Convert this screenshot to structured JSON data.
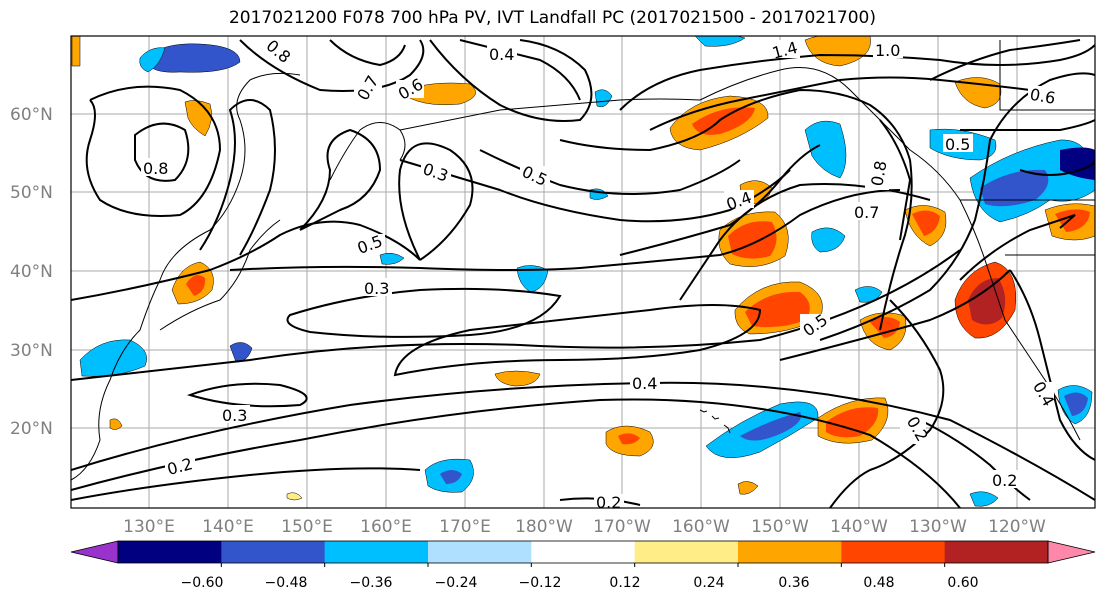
{
  "title": "2017021200 F078 700 hPa PV, IVT Landfall PC (2017021500 - 2017021700)",
  "map": {
    "lat_labels": [
      "60°N",
      "50°N",
      "40°N",
      "30°N",
      "20°N"
    ],
    "lon_labels": [
      "130°E",
      "140°E",
      "150°E",
      "160°E",
      "170°E",
      "180°W",
      "170°W",
      "160°W",
      "150°W",
      "140°W",
      "130°W",
      "120°W"
    ],
    "contour_labels": [
      "0.8",
      "0.4",
      "0.7",
      "0.6",
      "0.3",
      "0.5",
      "0.2",
      "1.4",
      "1.0",
      "0.4",
      "0.3",
      "0.5",
      "0.8",
      "0.7",
      "0.5",
      "0.4",
      "0.3",
      "0.2",
      "0.2",
      "0.2",
      "0.6",
      "0.5",
      "0.4",
      "0.8"
    ]
  },
  "colorbar": {
    "tick_labels": [
      "−0.60",
      "−0.48",
      "−0.36",
      "−0.24",
      "−0.12",
      "0.12",
      "0.24",
      "0.36",
      "0.48",
      "0.60"
    ],
    "colors": [
      "#9933cc",
      "#000080",
      "#3355cc",
      "#00bfff",
      "#b0e0ff",
      "#ffffff",
      "#ffee88",
      "#ffa500",
      "#ff4500",
      "#b22222",
      "#ff88aa"
    ]
  }
}
